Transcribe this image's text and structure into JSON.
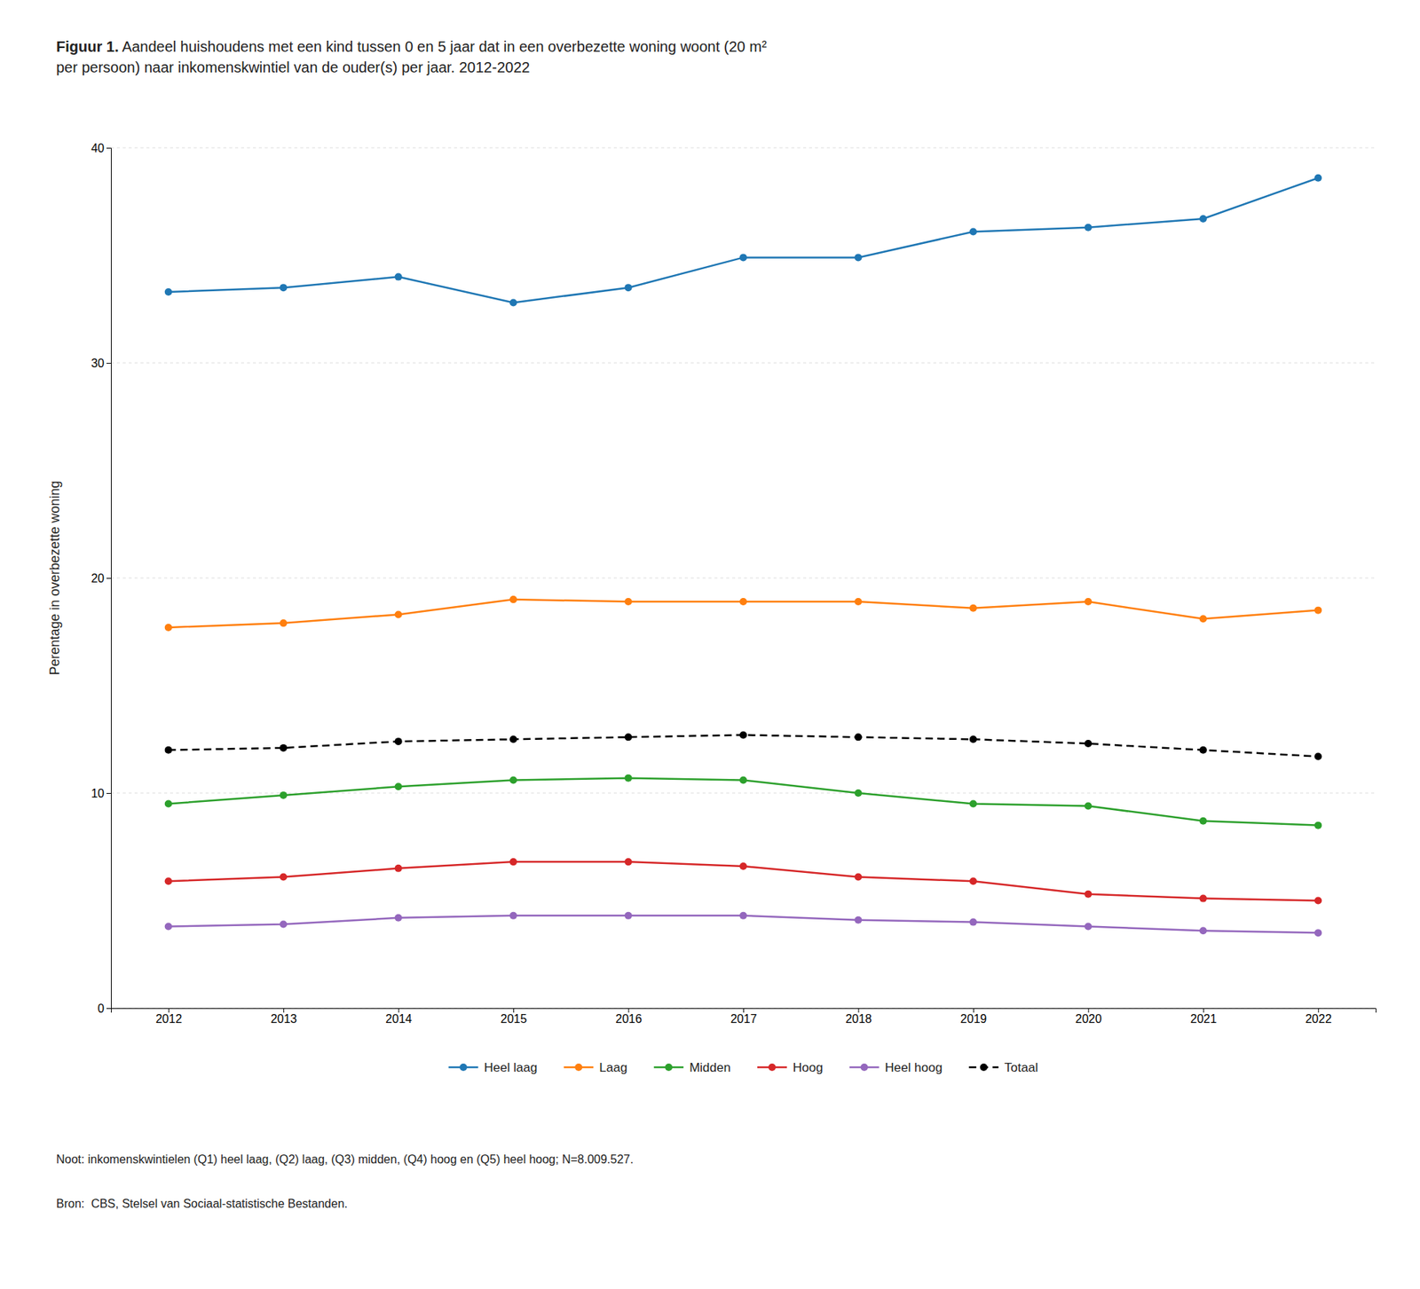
{
  "chart_data": {
    "type": "line",
    "title": "Figuur 1.",
    "subtitle": " Aandeel huishoudens met een kind tussen 0 en 5 jaar dat in een overbezette woning woont (20 m²\nper persoon) naar inkomenskwintiel van de ouder(s) per jaar. 2012-2022",
    "ylabel": "Perentage in overbezette woning",
    "x": [
      2012,
      2013,
      2014,
      2015,
      2016,
      2017,
      2018,
      2019,
      2020,
      2021,
      2022
    ],
    "xlim": [
      2011.5,
      2022.5
    ],
    "xticks": [
      2012,
      2013,
      2014,
      2015,
      2016,
      2017,
      2018,
      2019,
      2020,
      2021,
      2022
    ],
    "ylim": [
      0,
      40
    ],
    "yticks": [
      0,
      10,
      20,
      30,
      40
    ],
    "grid": "y",
    "legend": "bottom",
    "series": [
      {
        "name": "Heel laag",
        "marker": "circle",
        "line_style": "solid",
        "values": [
          33.3,
          33.5,
          34.0,
          32.8,
          33.5,
          34.9,
          34.9,
          36.1,
          36.3,
          36.7,
          38.6
        ]
      },
      {
        "name": "Laag",
        "marker": "circle",
        "line_style": "solid",
        "values": [
          17.7,
          17.9,
          18.3,
          19.0,
          18.9,
          18.9,
          18.9,
          18.6,
          18.9,
          18.1,
          18.5
        ]
      },
      {
        "name": "Midden",
        "marker": "circle",
        "line_style": "solid",
        "values": [
          9.5,
          9.9,
          10.3,
          10.6,
          10.7,
          10.6,
          10.0,
          9.5,
          9.4,
          8.7,
          8.5
        ]
      },
      {
        "name": "Hoog",
        "marker": "circle",
        "line_style": "solid",
        "values": [
          5.9,
          6.1,
          6.5,
          6.8,
          6.8,
          6.6,
          6.1,
          5.9,
          5.3,
          5.1,
          5.0
        ]
      },
      {
        "name": "Heel hoog",
        "marker": "circle",
        "line_style": "solid",
        "values": [
          3.8,
          3.9,
          4.2,
          4.3,
          4.3,
          4.3,
          4.1,
          4.0,
          3.8,
          3.6,
          3.5
        ]
      },
      {
        "name": "Totaal",
        "color": "#000000",
        "marker": "circle",
        "line_style": "dashed",
        "values": [
          12.0,
          12.1,
          12.4,
          12.5,
          12.6,
          12.7,
          12.6,
          12.5,
          12.3,
          12.0,
          11.7
        ]
      }
    ],
    "annotations": [
      "Noot: inkomenskwintielen (Q1) heel laag, (Q2) laag, (Q3) midden, (Q4) hoog en (Q5) heel hoog; N=8.009.527.",
      "Bron:  CBS, Stelsel van Sociaal-statistische Bestanden."
    ]
  }
}
